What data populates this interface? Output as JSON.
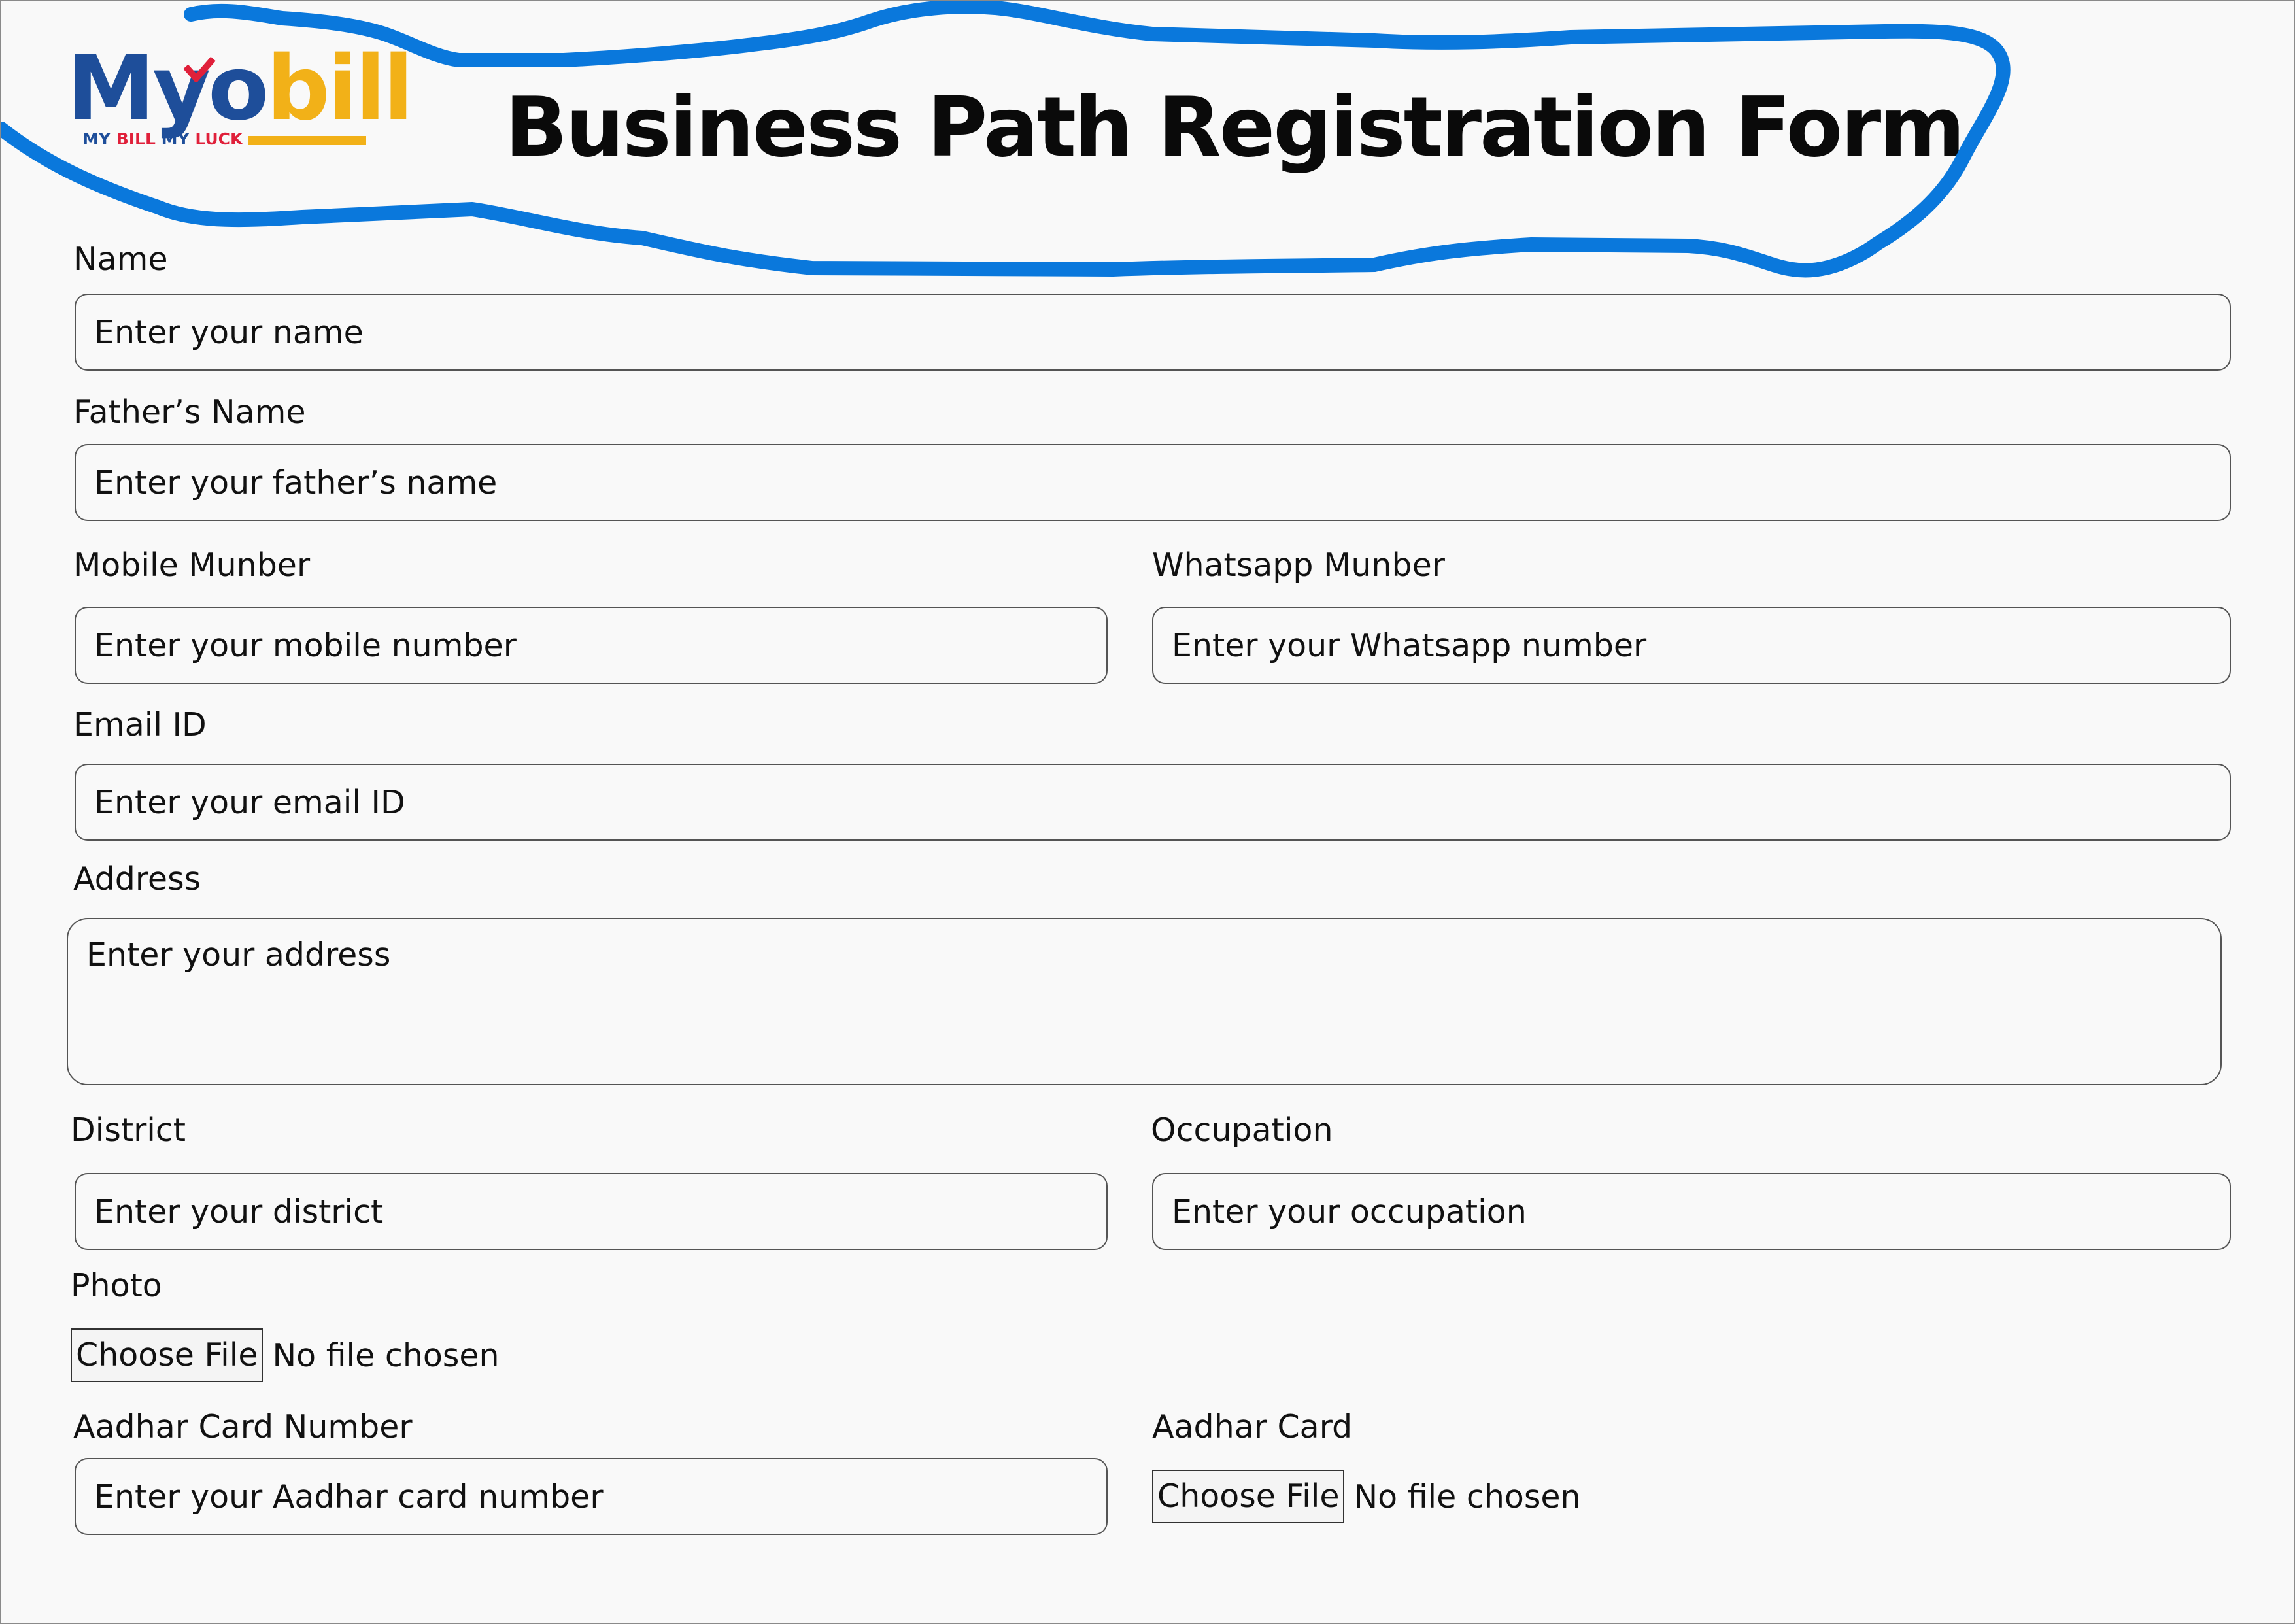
{
  "logo": {
    "word": {
      "m": "M",
      "y": "y",
      "o": "o",
      "bill": "bill"
    },
    "tagline": {
      "my": "MY",
      "bill": "BILL",
      "my2": "MY",
      "luck": "LUCK"
    }
  },
  "title": "Business Path Registration Form",
  "fields": {
    "name": {
      "label": "Name",
      "placeholder": "Enter your name"
    },
    "father_name": {
      "label": "Father’s Name",
      "placeholder": "Enter your father’s name"
    },
    "mobile": {
      "label": "Mobile Munber",
      "placeholder": "Enter your mobile number"
    },
    "whatsapp": {
      "label": "Whatsapp  Munber",
      "placeholder": "Enter your Whatsapp number"
    },
    "email": {
      "label": "Email ID",
      "placeholder": "Enter your email ID"
    },
    "address": {
      "label": "Address",
      "placeholder": "Enter your address"
    },
    "district": {
      "label": "District",
      "placeholder": "Enter your district"
    },
    "occupation": {
      "label": "Occupation",
      "placeholder": "Enter your occupation"
    },
    "photo": {
      "label": "Photo",
      "button": "Choose File",
      "status": "No file chosen"
    },
    "aadhar_number": {
      "label": "Aadhar Card Number",
      "placeholder": "Enter your Aadhar card number"
    },
    "aadhar_card": {
      "label": "Aadhar Card",
      "button": "Choose File",
      "status": "No file chosen"
    }
  },
  "colors": {
    "logo_blue": "#1e4e9a",
    "logo_yellow": "#f2b118",
    "logo_red": "#e0203a",
    "scribble_blue": "#0a78dc"
  }
}
